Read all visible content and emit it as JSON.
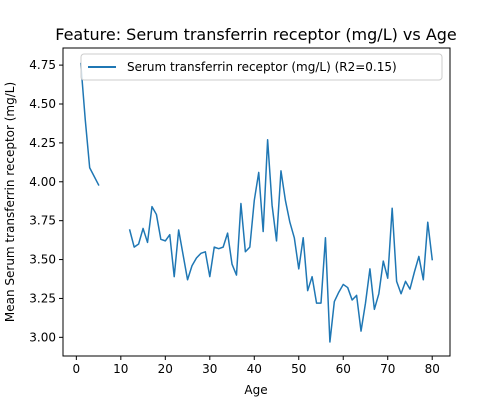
{
  "chart_data": {
    "type": "line",
    "title": "Feature: Serum transferrin receptor (mg/L) vs Age",
    "xlabel": "Age",
    "ylabel": "Mean Serum transferrin receptor (mg/L)",
    "xlim": [
      -3.0,
      84.0
    ],
    "ylim": [
      2.88,
      4.86
    ],
    "xticks": [
      0,
      10,
      20,
      30,
      40,
      50,
      60,
      70,
      80
    ],
    "yticks": [
      3.0,
      3.25,
      3.5,
      3.75,
      4.0,
      4.25,
      4.5,
      4.75
    ],
    "ytick_labels": [
      "3.00",
      "3.25",
      "3.50",
      "3.75",
      "4.00",
      "4.25",
      "4.50",
      "4.75"
    ],
    "grid": false,
    "legend_position": "top-right",
    "colors": {
      "series": "#1f77b4"
    },
    "series": [
      {
        "name": "Serum transferrin receptor (mg/L) (R2=0.15)",
        "segments": [
          {
            "x": [
              1,
              2,
              3,
              5
            ],
            "y": [
              4.76,
              4.4,
              4.09,
              3.98
            ]
          },
          {
            "x": [
              12,
              13,
              14,
              15,
              16,
              17,
              18,
              19,
              20,
              21,
              22,
              23,
              24,
              25,
              26,
              27,
              28,
              29,
              30,
              31,
              32,
              33,
              34,
              35,
              36,
              37,
              38,
              39,
              40,
              41,
              42,
              43,
              44,
              45,
              46,
              47,
              48,
              49,
              50,
              51,
              52,
              53,
              54,
              55,
              56,
              57,
              58,
              59,
              60,
              61,
              62,
              63,
              64,
              65,
              66,
              67,
              68,
              69,
              70,
              71,
              72,
              73,
              74,
              75,
              76,
              77,
              78,
              79,
              80
            ],
            "y": [
              3.69,
              3.58,
              3.6,
              3.7,
              3.61,
              3.84,
              3.79,
              3.63,
              3.62,
              3.66,
              3.39,
              3.69,
              3.53,
              3.37,
              3.46,
              3.51,
              3.54,
              3.55,
              3.39,
              3.58,
              3.57,
              3.58,
              3.67,
              3.47,
              3.4,
              3.86,
              3.55,
              3.58,
              3.88,
              4.06,
              3.68,
              4.27,
              3.85,
              3.62,
              4.07,
              3.88,
              3.74,
              3.64,
              3.44,
              3.64,
              3.3,
              3.39,
              3.22,
              3.22,
              3.64,
              2.97,
              3.23,
              3.29,
              3.34,
              3.32,
              3.24,
              3.27,
              3.04,
              3.22,
              3.44,
              3.18,
              3.28,
              3.49,
              3.38,
              3.83,
              3.36,
              3.28,
              3.36,
              3.31,
              3.42,
              3.52,
              3.37,
              3.74,
              3.5
            ]
          }
        ]
      }
    ]
  }
}
